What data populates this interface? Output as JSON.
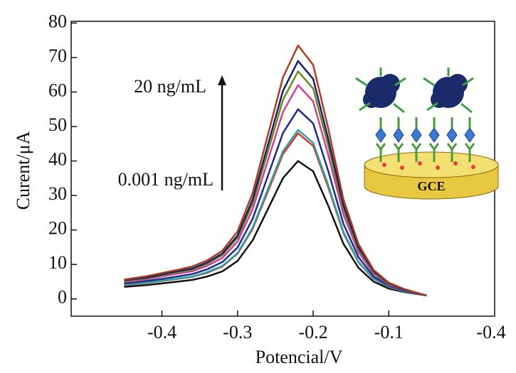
{
  "chart_data": {
    "type": "line",
    "x_label": "Potencial/V",
    "y_label": "Curent/μA",
    "annotations": [
      "20 ng/mL",
      "0.001 ng/mL",
      "-0.4"
    ],
    "inset_label": "GCE",
    "x": [
      -0.45,
      -0.42,
      -0.4,
      -0.38,
      -0.36,
      -0.34,
      -0.32,
      -0.3,
      -0.28,
      -0.26,
      -0.24,
      -0.22,
      -0.2,
      -0.18,
      -0.16,
      -0.14,
      -0.12,
      -0.1,
      -0.08,
      -0.05
    ],
    "series": [
      {
        "color": "#111111",
        "values": [
          3.5,
          4,
          4.5,
          5,
          5.5,
          6.5,
          8,
          11,
          17,
          26,
          35,
          40,
          37,
          27,
          16,
          9,
          5,
          3,
          2,
          1
        ]
      },
      {
        "color": "#e0302a",
        "values": [
          4.0,
          4.6,
          5.2,
          5.8,
          6.4,
          7.6,
          9.4,
          13.1,
          20.3,
          31.1,
          42,
          48,
          44.4,
          32.3,
          19.1,
          10.6,
          5.8,
          3.4,
          2.2,
          1
        ]
      },
      {
        "color": "#2aa6a6",
        "values": [
          4.1,
          4.7,
          5.3,
          5.9,
          6.5,
          7.8,
          9.6,
          13.3,
          20.7,
          31.8,
          42.8,
          49,
          45.3,
          33,
          19.5,
          10.8,
          5.9,
          3.5,
          2.2,
          1
        ]
      },
      {
        "color": "#1f2a8a",
        "values": [
          4.5,
          5.2,
          5.8,
          6.5,
          7.2,
          8.6,
          10.7,
          14.9,
          23.2,
          35.6,
          48.1,
          55,
          50.9,
          37,
          21.8,
          12.1,
          6.5,
          3.8,
          2.4,
          1
        ]
      },
      {
        "color": "#d0409a",
        "values": [
          4.9,
          5.7,
          6.5,
          7.3,
          8,
          9.6,
          11.9,
          16.6,
          26,
          40.1,
          54.2,
          62,
          57.3,
          41.7,
          24.5,
          13.5,
          7.3,
          4.1,
          2.6,
          1
        ]
      },
      {
        "color": "#6a8a1e",
        "values": [
          5.2,
          6,
          6.8,
          7.7,
          8.5,
          10.2,
          12.7,
          17.7,
          27.7,
          42.7,
          57.7,
          66,
          61,
          44.3,
          26,
          14.3,
          7.7,
          4.3,
          2.7,
          1
        ]
      },
      {
        "color": "#16206a",
        "values": [
          5.4,
          6.2,
          7.1,
          8,
          8.8,
          10.6,
          13.2,
          18.4,
          28.9,
          44.6,
          60.3,
          69,
          63.8,
          46.3,
          27.2,
          15,
          8,
          4.5,
          2.7,
          1
        ]
      },
      {
        "color": "#b03a22",
        "values": [
          5.6,
          6.6,
          7.5,
          8.4,
          9.4,
          11.2,
          14,
          19.6,
          30.7,
          47.5,
          64.2,
          73.5,
          67.9,
          49.3,
          28.9,
          15.9,
          8.4,
          4.7,
          2.9,
          1
        ]
      }
    ],
    "xlim": [
      -0.52,
      0.04
    ],
    "ylim": [
      -5,
      80.5
    ],
    "xticks": [
      -0.4,
      -0.3,
      -0.2,
      -0.1
    ],
    "yticks": [
      0,
      10,
      20,
      30,
      40,
      50,
      60,
      70,
      80
    ]
  }
}
